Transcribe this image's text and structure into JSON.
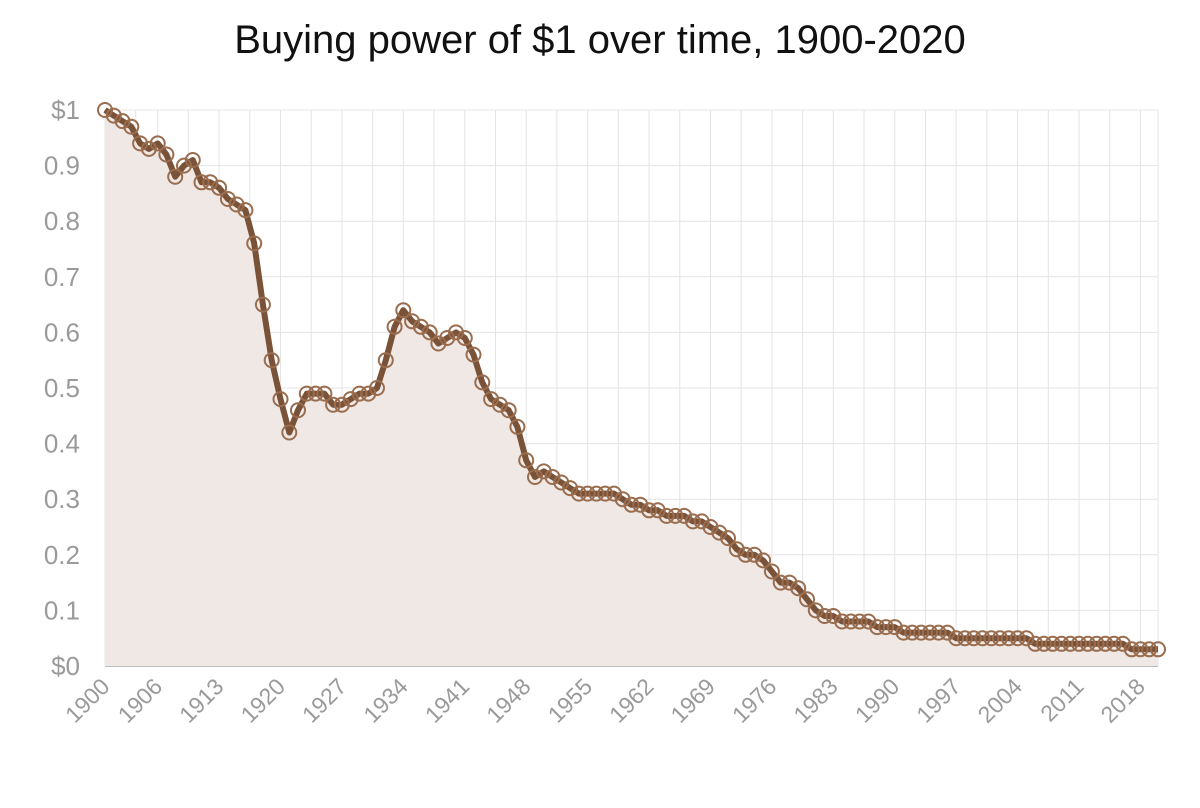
{
  "chart_data": {
    "type": "line",
    "title": "Buying power of $1 over time, 1900-2020",
    "xlabel": "",
    "ylabel": "",
    "xlim": [
      1900,
      2020
    ],
    "ylim": [
      0,
      1
    ],
    "grid": true,
    "area_fill": true,
    "y_tick_labels": [
      "$0",
      "0.1",
      "0.2",
      "0.3",
      "0.4",
      "0.5",
      "0.6",
      "0.7",
      "0.8",
      "0.9",
      "$1"
    ],
    "x_tick_labels": [
      "1900",
      "1906",
      "1913",
      "1920",
      "1927",
      "1934",
      "1941",
      "1948",
      "1955",
      "1962",
      "1969",
      "1976",
      "1983",
      "1990",
      "1997",
      "2004",
      "2011",
      "2018"
    ],
    "colors": {
      "line": "#7a5238",
      "marker": "#9a6d4f",
      "fill": "#efe8e5",
      "grid": "#e4e4e4",
      "ticks": "#9a9a9a"
    },
    "series": [
      {
        "x": [
          1900,
          1901,
          1902,
          1903,
          1904,
          1905,
          1906,
          1907,
          1908,
          1909,
          1910,
          1911,
          1912,
          1913,
          1914,
          1915,
          1916,
          1917,
          1918,
          1919,
          1920,
          1921,
          1922,
          1923,
          1924,
          1925,
          1926,
          1927,
          1928,
          1929,
          1930,
          1931,
          1932,
          1933,
          1934,
          1935,
          1936,
          1937,
          1938,
          1939,
          1940,
          1941,
          1942,
          1943,
          1944,
          1945,
          1946,
          1947,
          1948,
          1949,
          1950,
          1951,
          1952,
          1953,
          1954,
          1955,
          1956,
          1957,
          1958,
          1959,
          1960,
          1961,
          1962,
          1963,
          1964,
          1965,
          1966,
          1967,
          1968,
          1969,
          1970,
          1971,
          1972,
          1973,
          1974,
          1975,
          1976,
          1977,
          1978,
          1979,
          1980,
          1981,
          1982,
          1983,
          1984,
          1985,
          1986,
          1987,
          1988,
          1989,
          1990,
          1991,
          1992,
          1993,
          1994,
          1995,
          1996,
          1997,
          1998,
          1999,
          2000,
          2001,
          2002,
          2003,
          2004,
          2005,
          2006,
          2007,
          2008,
          2009,
          2010,
          2011,
          2012,
          2013,
          2014,
          2015,
          2016,
          2017,
          2018,
          2019,
          2020
        ],
        "values": [
          1.0,
          0.99,
          0.98,
          0.97,
          0.94,
          0.93,
          0.94,
          0.92,
          0.88,
          0.9,
          0.91,
          0.87,
          0.87,
          0.86,
          0.84,
          0.83,
          0.82,
          0.76,
          0.65,
          0.55,
          0.48,
          0.42,
          0.46,
          0.49,
          0.49,
          0.49,
          0.47,
          0.47,
          0.48,
          0.49,
          0.49,
          0.5,
          0.55,
          0.61,
          0.64,
          0.62,
          0.61,
          0.6,
          0.58,
          0.59,
          0.6,
          0.59,
          0.56,
          0.51,
          0.48,
          0.47,
          0.46,
          0.43,
          0.37,
          0.34,
          0.35,
          0.34,
          0.33,
          0.32,
          0.31,
          0.31,
          0.31,
          0.31,
          0.31,
          0.3,
          0.29,
          0.29,
          0.28,
          0.28,
          0.27,
          0.27,
          0.27,
          0.26,
          0.26,
          0.25,
          0.24,
          0.23,
          0.21,
          0.2,
          0.2,
          0.19,
          0.17,
          0.15,
          0.15,
          0.14,
          0.12,
          0.1,
          0.09,
          0.09,
          0.08,
          0.08,
          0.08,
          0.08,
          0.07,
          0.07,
          0.07,
          0.06,
          0.06,
          0.06,
          0.06,
          0.06,
          0.06,
          0.05,
          0.05,
          0.05,
          0.05,
          0.05,
          0.05,
          0.05,
          0.05,
          0.05,
          0.04,
          0.04,
          0.04,
          0.04,
          0.04,
          0.04,
          0.04,
          0.04,
          0.04,
          0.04,
          0.04,
          0.03,
          0.03,
          0.03,
          0.03
        ]
      }
    ]
  }
}
